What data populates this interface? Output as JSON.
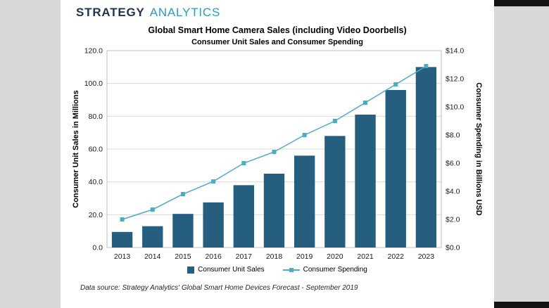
{
  "brand": {
    "part1": "STRATEGY",
    "part2": "ANALYTICS",
    "color1": "#1F3251",
    "color2": "#2E9BC0"
  },
  "chart_data": {
    "type": "bar+line combo",
    "title": "Global Smart Home Camera Sales (including Video Doorbells)",
    "subtitle": "Consumer Unit Sales and Consumer Spending",
    "categories": [
      "2013",
      "2014",
      "2015",
      "2016",
      "2017",
      "2018",
      "2019",
      "2020",
      "2021",
      "2022",
      "2023"
    ],
    "series": [
      {
        "name": "Consumer Unit Sales",
        "type": "bar",
        "axis": "left",
        "color": "#255E7E",
        "values": [
          9.5,
          13,
          20.5,
          27.5,
          38,
          45,
          56,
          68,
          81,
          96,
          110
        ]
      },
      {
        "name": "Consumer Spending",
        "type": "line",
        "axis": "right",
        "color": "#4BACC6",
        "values": [
          2.0,
          2.7,
          3.8,
          4.7,
          6.0,
          6.8,
          8.0,
          9.0,
          10.3,
          11.6,
          12.9
        ]
      }
    ],
    "ylabel_left": "Consumer Unit Sales in Millions",
    "ylabel_right": "Consumer Spending in Billions USD",
    "y_left": {
      "min": 0,
      "max": 120,
      "tick_values": [
        0,
        20,
        40,
        60,
        80,
        100,
        120
      ],
      "tick_labels": [
        "0.0",
        "20.0",
        "40.0",
        "60.0",
        "80.0",
        "100.0",
        "120.0"
      ]
    },
    "y_right": {
      "min": 0,
      "max": 14,
      "tick_values": [
        0,
        2,
        4,
        6,
        8,
        10,
        12,
        14
      ],
      "tick_labels": [
        "$0.0",
        "$2.0",
        "$4.0",
        "$6.0",
        "$8.0",
        "$10.0",
        "$12.0",
        "$14.0"
      ]
    },
    "grid": true,
    "legend_position": "bottom",
    "source": "Data source: Strategy Analytics' Global Smart Home Devices Forecast - September 2019"
  }
}
